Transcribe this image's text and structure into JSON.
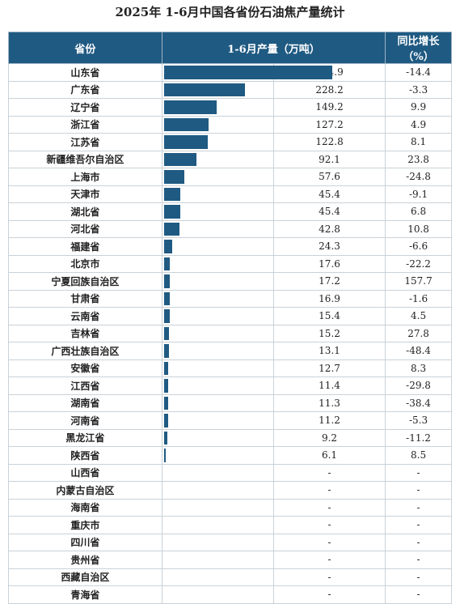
{
  "title": "2025年 1-6月中国各省份石油焦产量统计",
  "colors": {
    "header_bg": "#1f5a82",
    "bar": "#1f5a82"
  },
  "chart_data": {
    "type": "bar",
    "orientation": "horizontal",
    "title": "2025年 1-6月中国各省份石油焦产量统计",
    "columns": [
      "省份",
      "1-6月产量（万吨）",
      "同比增长（%）"
    ],
    "xlim": [
      0,
      474.9
    ],
    "rows": [
      {
        "province": "山东省",
        "value": 474.9,
        "value_text": "474.9",
        "yoy": "-14.4"
      },
      {
        "province": "广东省",
        "value": 228.2,
        "value_text": "228.2",
        "yoy": "-3.3"
      },
      {
        "province": "辽宁省",
        "value": 149.2,
        "value_text": "149.2",
        "yoy": "9.9"
      },
      {
        "province": "浙江省",
        "value": 127.2,
        "value_text": "127.2",
        "yoy": "4.9"
      },
      {
        "province": "江苏省",
        "value": 122.8,
        "value_text": "122.8",
        "yoy": "8.1"
      },
      {
        "province": "新疆维吾尔自治区",
        "value": 92.1,
        "value_text": "92.1",
        "yoy": "23.8"
      },
      {
        "province": "上海市",
        "value": 57.6,
        "value_text": "57.6",
        "yoy": "-24.8"
      },
      {
        "province": "天津市",
        "value": 45.4,
        "value_text": "45.4",
        "yoy": "-9.1"
      },
      {
        "province": "湖北省",
        "value": 45.4,
        "value_text": "45.4",
        "yoy": "6.8"
      },
      {
        "province": "河北省",
        "value": 42.8,
        "value_text": "42.8",
        "yoy": "10.8"
      },
      {
        "province": "福建省",
        "value": 24.3,
        "value_text": "24.3",
        "yoy": "-6.6"
      },
      {
        "province": "北京市",
        "value": 17.6,
        "value_text": "17.6",
        "yoy": "-22.2"
      },
      {
        "province": "宁夏回族自治区",
        "value": 17.2,
        "value_text": "17.2",
        "yoy": "157.7"
      },
      {
        "province": "甘肃省",
        "value": 16.9,
        "value_text": "16.9",
        "yoy": "-1.6"
      },
      {
        "province": "云南省",
        "value": 15.4,
        "value_text": "15.4",
        "yoy": "4.5"
      },
      {
        "province": "吉林省",
        "value": 15.2,
        "value_text": "15.2",
        "yoy": "27.8"
      },
      {
        "province": "广西壮族自治区",
        "value": 13.1,
        "value_text": "13.1",
        "yoy": "-48.4"
      },
      {
        "province": "安徽省",
        "value": 12.7,
        "value_text": "12.7",
        "yoy": "8.3"
      },
      {
        "province": "江西省",
        "value": 11.4,
        "value_text": "11.4",
        "yoy": "-29.8"
      },
      {
        "province": "湖南省",
        "value": 11.3,
        "value_text": "11.3",
        "yoy": "-38.4"
      },
      {
        "province": "河南省",
        "value": 11.2,
        "value_text": "11.2",
        "yoy": "-5.3"
      },
      {
        "province": "黑龙江省",
        "value": 9.2,
        "value_text": "9.2",
        "yoy": "-11.2"
      },
      {
        "province": "陕西省",
        "value": 6.1,
        "value_text": "6.1",
        "yoy": "8.5"
      },
      {
        "province": "山西省",
        "value": null,
        "value_text": "-",
        "yoy": "-"
      },
      {
        "province": "内蒙古自治区",
        "value": null,
        "value_text": "-",
        "yoy": "-"
      },
      {
        "province": "海南省",
        "value": null,
        "value_text": "-",
        "yoy": "-"
      },
      {
        "province": "重庆市",
        "value": null,
        "value_text": "-",
        "yoy": "-"
      },
      {
        "province": "四川省",
        "value": null,
        "value_text": "-",
        "yoy": "-"
      },
      {
        "province": "贵州省",
        "value": null,
        "value_text": "-",
        "yoy": "-"
      },
      {
        "province": "西藏自治区",
        "value": null,
        "value_text": "-",
        "yoy": "-"
      },
      {
        "province": "青海省",
        "value": null,
        "value_text": "-",
        "yoy": "-"
      }
    ]
  }
}
